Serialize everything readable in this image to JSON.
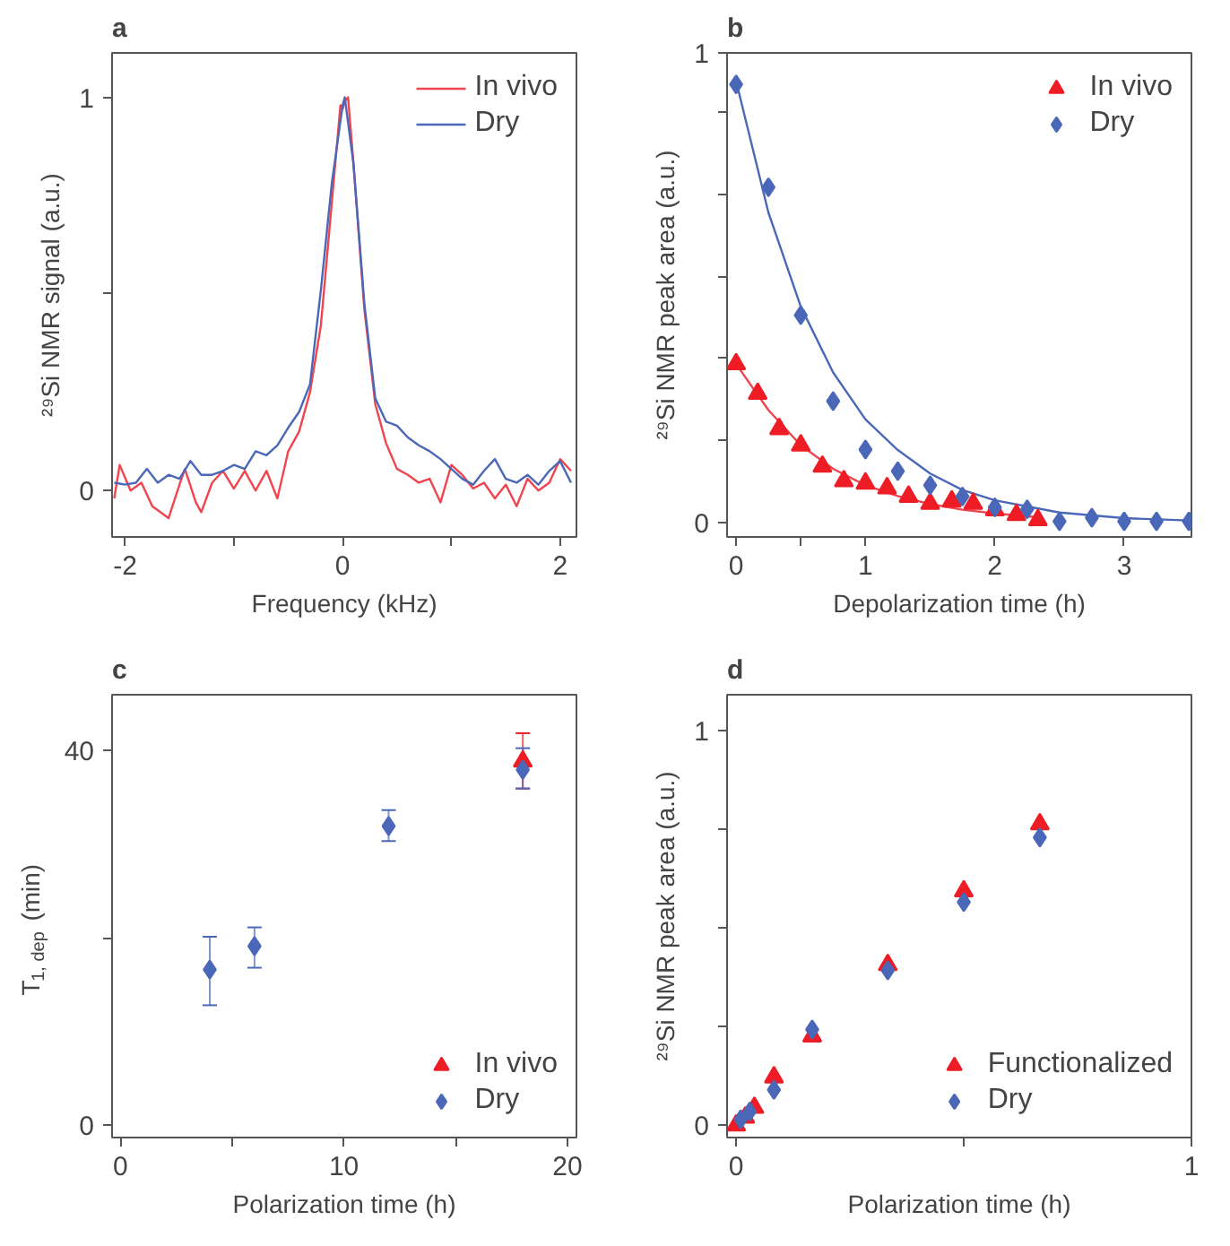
{
  "chart_data": [
    {
      "type": "line",
      "title": "a",
      "xlabel": "Frequency (kHz)",
      "ylabel": "²⁹Si NMR signal (a.u.)",
      "xlim": [
        -2.12,
        2.15
      ],
      "ylim": [
        -0.118,
        1.113
      ],
      "xticks": [
        -2,
        {
          "value": -1,
          "label": null
        },
        0,
        {
          "value": 1,
          "label": null
        },
        2
      ],
      "yticks": [
        0,
        {
          "value": 0.5,
          "label": null
        },
        1
      ],
      "grid": false,
      "legend": "top right",
      "marker": "none",
      "series": [
        {
          "name": "In vivo",
          "color": "#f0444f",
          "x": [
            -2.1,
            -2.05,
            -1.95,
            -1.85,
            -1.75,
            -1.6,
            -1.5,
            -1.45,
            -1.35,
            -1.3,
            -1.2,
            -1.1,
            -1.0,
            -0.9,
            -0.8,
            -0.7,
            -0.6,
            -0.5,
            -0.4,
            -0.3,
            -0.2,
            -0.1,
            -0.02,
            0.0,
            0.02,
            0.05,
            0.1,
            0.2,
            0.3,
            0.4,
            0.5,
            0.6,
            0.7,
            0.8,
            0.9,
            1.0,
            1.1,
            1.2,
            1.3,
            1.4,
            1.5,
            1.6,
            1.7,
            1.8,
            1.9,
            2.0,
            2.1
          ],
          "values": [
            -0.02,
            0.065,
            0.0,
            0.02,
            -0.04,
            -0.07,
            0.015,
            0.055,
            -0.03,
            -0.055,
            0.02,
            0.05,
            0.005,
            0.05,
            0.0,
            0.05,
            -0.02,
            0.1,
            0.15,
            0.25,
            0.42,
            0.73,
            0.98,
            0.97,
            0.99,
            1.0,
            0.83,
            0.46,
            0.22,
            0.12,
            0.055,
            0.04,
            0.02,
            0.03,
            -0.03,
            0.065,
            0.04,
            0.005,
            0.02,
            -0.02,
            0.015,
            -0.04,
            0.03,
            0.0,
            0.02,
            0.08,
            0.05
          ]
        },
        {
          "name": "Dry",
          "color": "#4a67b8",
          "x": [
            -2.1,
            -2.0,
            -1.9,
            -1.8,
            -1.7,
            -1.6,
            -1.5,
            -1.4,
            -1.3,
            -1.2,
            -1.1,
            -1.0,
            -0.9,
            -0.8,
            -0.7,
            -0.6,
            -0.5,
            -0.4,
            -0.3,
            -0.2,
            -0.1,
            0.0,
            0.02,
            0.1,
            0.2,
            0.3,
            0.4,
            0.5,
            0.6,
            0.7,
            0.8,
            0.9,
            1.0,
            1.1,
            1.2,
            1.3,
            1.4,
            1.5,
            1.6,
            1.7,
            1.8,
            1.9,
            2.0,
            2.1
          ],
          "values": [
            0.02,
            0.015,
            0.02,
            0.055,
            0.02,
            0.04,
            0.03,
            0.075,
            0.04,
            0.04,
            0.05,
            0.065,
            0.055,
            0.1,
            0.09,
            0.115,
            0.16,
            0.2,
            0.27,
            0.51,
            0.78,
            0.98,
            1.0,
            0.83,
            0.475,
            0.235,
            0.175,
            0.165,
            0.135,
            0.115,
            0.1,
            0.08,
            0.055,
            0.03,
            0.015,
            0.05,
            0.08,
            0.03,
            0.02,
            0.04,
            0.015,
            0.05,
            0.075,
            0.02
          ]
        }
      ]
    },
    {
      "type": "scatter",
      "title": "b",
      "xlabel": "Depolarization time (h)",
      "ylabel": "²⁹Si NMR peak area (a.u.)",
      "xlim": [
        -0.07,
        3.52
      ],
      "ylim": [
        -0.03,
        1
      ],
      "xticks": [
        0,
        {
          "value": 0.5,
          "label": null
        },
        1,
        2,
        3
      ],
      "yticks": [
        0,
        {
          "value": 0.175,
          "label": null
        },
        {
          "value": 0.35,
          "label": null
        },
        {
          "value": 0.525,
          "label": null
        },
        {
          "value": 0.7,
          "label": null
        },
        {
          "value": 0.875,
          "label": null
        },
        1
      ],
      "grid": false,
      "legend": "top right",
      "series": [
        {
          "type": "line",
          "color": "#f0444f",
          "x": [
            0,
            0.25,
            0.5,
            0.75,
            1.0,
            1.25,
            1.5,
            1.75,
            2.0,
            2.33
          ],
          "values": [
            0.338,
            0.24,
            0.165,
            0.115,
            0.08,
            0.057,
            0.04,
            0.028,
            0.02,
            0.012
          ]
        },
        {
          "type": "line",
          "color": "#4a67b8",
          "x": [
            0,
            0.25,
            0.5,
            0.75,
            1.0,
            1.25,
            1.5,
            1.75,
            2.0,
            2.5,
            3.0,
            3.5
          ],
          "values": [
            0.94,
            0.66,
            0.46,
            0.32,
            0.22,
            0.155,
            0.105,
            0.07,
            0.048,
            0.022,
            0.01,
            0.005
          ]
        },
        {
          "name": "In vivo",
          "color": "#ee1c25",
          "marker": "triangle",
          "x": [
            0,
            0.167,
            0.333,
            0.5,
            0.667,
            0.833,
            1.0,
            1.167,
            1.333,
            1.5,
            1.667,
            1.833,
            2.0,
            2.167,
            2.333
          ],
          "values": [
            0.338,
            0.275,
            0.2,
            0.165,
            0.12,
            0.089,
            0.084,
            0.074,
            0.056,
            0.041,
            0.046,
            0.041,
            0.027,
            0.017,
            0.006
          ]
        },
        {
          "name": "Dry",
          "color": "#4a67b8",
          "marker": "diamond",
          "x": [
            0,
            0.25,
            0.5,
            0.75,
            1.0,
            1.25,
            1.5,
            1.75,
            2.0,
            2.25,
            2.5,
            2.75,
            3.0,
            3.25,
            3.5
          ],
          "values": [
            0.933,
            0.714,
            0.442,
            0.259,
            0.156,
            0.11,
            0.08,
            0.056,
            0.033,
            0.029,
            0.003,
            0.011,
            0.003,
            0.003,
            0.003
          ]
        }
      ]
    },
    {
      "type": "scatter",
      "title": "c",
      "xlabel": "Polarization time (h)",
      "ylabel": "T$_{1, dep}$ (min)",
      "xlim": [
        -0.37,
        20.4
      ],
      "ylim": [
        -1.3,
        45.9
      ],
      "xticks": [
        0,
        {
          "value": 5,
          "label": null
        },
        10,
        {
          "value": 15,
          "label": null
        },
        20
      ],
      "yticks": [
        0,
        {
          "value": 20,
          "label": null
        },
        40
      ],
      "grid": false,
      "legend": "bottom right",
      "series": [
        {
          "name": "In vivo",
          "color": "#ee1c25",
          "marker": "triangle",
          "x": [
            18
          ],
          "values": [
            38.8
          ],
          "errors": [
            [
              35.9,
              41.8
            ]
          ]
        },
        {
          "name": "Dry",
          "color": "#4a67b8",
          "marker": "diamond",
          "x": [
            4,
            6,
            12,
            18
          ],
          "values": [
            16.6,
            19.1,
            31.9,
            37.9
          ],
          "errors": [
            [
              12.8,
              20.1
            ],
            [
              16.8,
              21.1
            ],
            [
              30.3,
              33.6
            ],
            [
              35.9,
              40.2
            ]
          ]
        }
      ]
    },
    {
      "type": "scatter",
      "title": "d",
      "xlabel": "Polarization time (h)",
      "ylabel": "²⁹Si NMR peak area (a.u.)",
      "xlim": [
        -0.02,
        1.0
      ],
      "ylim": [
        -0.031,
        1.092
      ],
      "xticks": [
        0,
        {
          "value": 0.5,
          "label": null
        },
        1
      ],
      "yticks": [
        0,
        {
          "value": 0.25,
          "label": null
        },
        {
          "value": 0.5,
          "label": null
        },
        {
          "value": 0.75,
          "label": null
        },
        1
      ],
      "grid": false,
      "legend": "bottom right",
      "series": [
        {
          "name": "Functionalized",
          "color": "#ee1c25",
          "marker": "triangle",
          "x": [
            0,
            0.02,
            0.04,
            0.083,
            0.167,
            0.333,
            0.5,
            0.667
          ],
          "values": [
            0,
            0.02,
            0.045,
            0.122,
            0.226,
            0.407,
            0.594,
            0.764
          ]
        },
        {
          "name": "Dry",
          "color": "#4a67b8",
          "marker": "diamond",
          "x": [
            0.01,
            0.03,
            0.083,
            0.167,
            0.333,
            0.5,
            0.667
          ],
          "values": [
            0.015,
            0.035,
            0.09,
            0.243,
            0.393,
            0.566,
            0.73
          ]
        }
      ]
    }
  ]
}
